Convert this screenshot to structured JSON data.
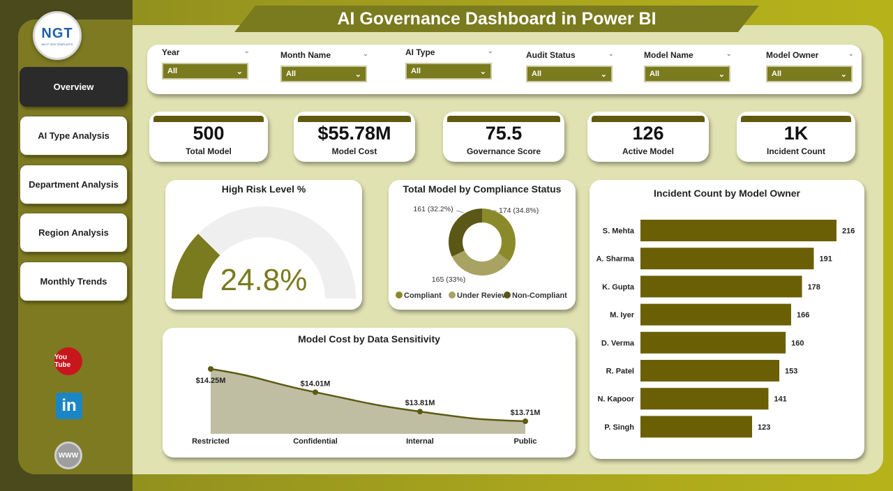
{
  "title": "AI Governance Dashboard in Power BI",
  "logo": {
    "main": "NGT",
    "sub": "NEXT GEN TEMPLATES"
  },
  "nav": [
    {
      "label": "Overview",
      "active": true
    },
    {
      "label": "AI Type Analysis"
    },
    {
      "label": "Department Analysis"
    },
    {
      "label": "Region Analysis"
    },
    {
      "label": "Monthly Trends"
    }
  ],
  "social": {
    "youtube": "You Tube",
    "linkedin": "in",
    "web": "WWW"
  },
  "slicers": [
    {
      "label": "Year",
      "value": "All"
    },
    {
      "label": "Month Name",
      "value": "All"
    },
    {
      "label": "AI Type",
      "value": "All"
    },
    {
      "label": "Audit Status",
      "value": "All"
    },
    {
      "label": "Model Name",
      "value": "All"
    },
    {
      "label": "Model Owner",
      "value": "All"
    }
  ],
  "kpis": [
    {
      "value": "500",
      "caption": "Total Model"
    },
    {
      "value": "$55.78M",
      "caption": "Model Cost"
    },
    {
      "value": "75.5",
      "caption": "Governance Score"
    },
    {
      "value": "126",
      "caption": "Active Model"
    },
    {
      "value": "1K",
      "caption": "Incident Count"
    }
  ],
  "colors": {
    "olive": "#7a7a1e",
    "dark_olive": "#5f5a0e",
    "light_olive": "#a9a363",
    "area_fill": "#bfbea3"
  },
  "chart_data": [
    {
      "type": "gauge",
      "title": "High Risk Level %",
      "value": 24.8,
      "label": "24.8%",
      "ylim": [
        0,
        100
      ]
    },
    {
      "type": "pie",
      "title": "Total Model by Compliance Status",
      "categories": [
        "Compliant",
        "Under Review",
        "Non-Compliant"
      ],
      "values": [
        174,
        165,
        161
      ],
      "labels": [
        "174 (34.8%)",
        "165 (33%)",
        "161 (32.2%)"
      ],
      "colors": [
        "#8b8a2a",
        "#a9a363",
        "#5a5717"
      ],
      "legend": "bottom"
    },
    {
      "type": "bar",
      "orientation": "horizontal",
      "title": "Incident Count by Model Owner",
      "categories": [
        "S. Mehta",
        "A. Sharma",
        "K. Gupta",
        "M. Iyer",
        "D. Verma",
        "R. Patel",
        "N. Kapoor",
        "P. Singh"
      ],
      "values": [
        216,
        191,
        178,
        166,
        160,
        153,
        141,
        123
      ],
      "xlim": [
        0,
        216
      ]
    },
    {
      "type": "area",
      "title": "Model Cost by Data Sensitivity",
      "categories": [
        "Restricted",
        "Confidential",
        "Internal",
        "Public"
      ],
      "values": [
        14.25,
        14.01,
        13.81,
        13.71
      ],
      "labels": [
        "$14.25M",
        "$14.01M",
        "$13.81M",
        "$13.71M"
      ],
      "ylim": [
        13.71,
        14.25
      ]
    }
  ]
}
